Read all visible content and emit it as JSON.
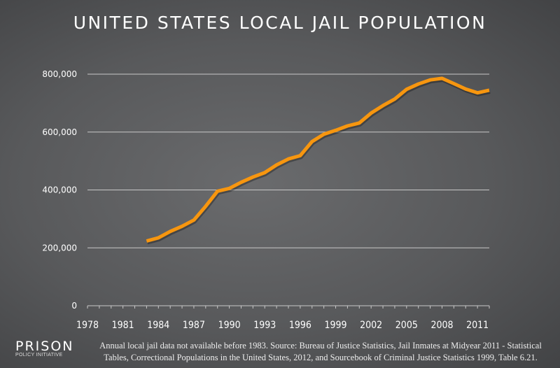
{
  "chart_data": {
    "type": "line",
    "title": "UNITED STATES LOCAL JAIL POPULATION",
    "xlabel": "",
    "ylabel": "",
    "x": [
      1983,
      1984,
      1985,
      1986,
      1987,
      1988,
      1989,
      1990,
      1991,
      1992,
      1993,
      1994,
      1995,
      1996,
      1997,
      1998,
      1999,
      2000,
      2001,
      2002,
      2003,
      2004,
      2005,
      2006,
      2007,
      2008,
      2009,
      2010,
      2011,
      2012
    ],
    "series": [
      {
        "name": "Local jail population",
        "color": "#f7960f",
        "values": [
          223551,
          234500,
          256615,
          274444,
          295873,
          343569,
          395553,
          405320,
          426479,
          444584,
          459804,
          486474,
          507044,
          518492,
          567079,
          592462,
          605943,
          621149,
          631240,
          665475,
          691301,
          713990,
          747529,
          766010,
          780174,
          785533,
          767434,
          748728,
          735601,
          744524
        ]
      }
    ],
    "xlim": [
      1978,
      2012
    ],
    "ylim": [
      0,
      800000
    ],
    "yticks": [
      0,
      200000,
      400000,
      600000,
      800000
    ],
    "ytick_labels": [
      "0",
      "200,000",
      "400,000",
      "600,000",
      "800,000"
    ],
    "xtick_labels": [
      "1978",
      "1981",
      "1984",
      "1987",
      "1990",
      "1993",
      "1996",
      "1999",
      "2002",
      "2005",
      "2008",
      "2011"
    ],
    "grid": true
  },
  "logo": {
    "line1": "PRISON",
    "line2": "POLICY INITIATIVE"
  },
  "note": {
    "line1": "Annual local jail data not available before 1983.   Source: Bureau of Justice Statistics, Jail Inmates at Midyear 2011 - Statistical",
    "line2": "Tables, Correctional Populations in the United States, 2012, and Sourcebook of Criminal Justice Statistics 1999, Table 6.21."
  }
}
